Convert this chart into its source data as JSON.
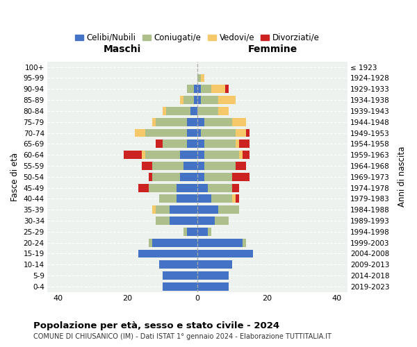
{
  "age_groups": [
    "0-4",
    "5-9",
    "10-14",
    "15-19",
    "20-24",
    "25-29",
    "30-34",
    "35-39",
    "40-44",
    "45-49",
    "50-54",
    "55-59",
    "60-64",
    "65-69",
    "70-74",
    "75-79",
    "80-84",
    "85-89",
    "90-94",
    "95-99",
    "100+"
  ],
  "birth_years": [
    "2019-2023",
    "2014-2018",
    "2009-2013",
    "2004-2008",
    "1999-2003",
    "1994-1998",
    "1989-1993",
    "1984-1988",
    "1979-1983",
    "1974-1978",
    "1969-1973",
    "1964-1968",
    "1959-1963",
    "1954-1958",
    "1949-1953",
    "1944-1948",
    "1939-1943",
    "1934-1938",
    "1929-1933",
    "1924-1928",
    "≤ 1923"
  ],
  "colors": {
    "celibi": "#4472C4",
    "coniugati": "#ADBF8A",
    "vedovi": "#F5C96A",
    "divorziati": "#CC2222"
  },
  "maschi": {
    "celibi": [
      10,
      10,
      11,
      17,
      13,
      3,
      8,
      8,
      6,
      6,
      5,
      4,
      5,
      3,
      3,
      3,
      2,
      1,
      1,
      0,
      0
    ],
    "coniugati": [
      0,
      0,
      0,
      0,
      1,
      1,
      4,
      4,
      5,
      8,
      8,
      9,
      10,
      7,
      12,
      9,
      7,
      3,
      2,
      0,
      0
    ],
    "vedovi": [
      0,
      0,
      0,
      0,
      0,
      0,
      0,
      1,
      0,
      0,
      0,
      0,
      1,
      0,
      3,
      1,
      1,
      1,
      0,
      0,
      0
    ],
    "divorziati": [
      0,
      0,
      0,
      0,
      0,
      0,
      0,
      0,
      0,
      3,
      1,
      3,
      5,
      2,
      0,
      0,
      0,
      0,
      0,
      0,
      0
    ]
  },
  "femmine": {
    "celibi": [
      9,
      9,
      10,
      16,
      13,
      3,
      5,
      6,
      4,
      3,
      2,
      2,
      2,
      2,
      1,
      2,
      0,
      1,
      1,
      0,
      0
    ],
    "coniugati": [
      0,
      0,
      0,
      0,
      1,
      1,
      4,
      6,
      6,
      7,
      8,
      9,
      10,
      9,
      10,
      8,
      6,
      5,
      3,
      1,
      0
    ],
    "vedovi": [
      0,
      0,
      0,
      0,
      0,
      0,
      0,
      0,
      1,
      0,
      0,
      0,
      1,
      1,
      3,
      4,
      3,
      5,
      4,
      1,
      0
    ],
    "divorziati": [
      0,
      0,
      0,
      0,
      0,
      0,
      0,
      0,
      1,
      2,
      5,
      3,
      2,
      3,
      1,
      0,
      0,
      0,
      1,
      0,
      0
    ]
  },
  "xlim": 43,
  "title": "Popolazione per età, sesso e stato civile - 2024",
  "subtitle": "COMUNE DI CHIUSANICO (IM) - Dati ISTAT 1° gennaio 2024 - Elaborazione TUTTITALIA.IT",
  "ylabel_left": "Fasce di età",
  "ylabel_right": "Anni di nascita",
  "xlabel_left": "Maschi",
  "xlabel_right": "Femmine",
  "legend_labels": [
    "Celibi/Nubili",
    "Coniugati/e",
    "Vedovi/e",
    "Divorziati/e"
  ],
  "bg_color": "#edf2ee"
}
